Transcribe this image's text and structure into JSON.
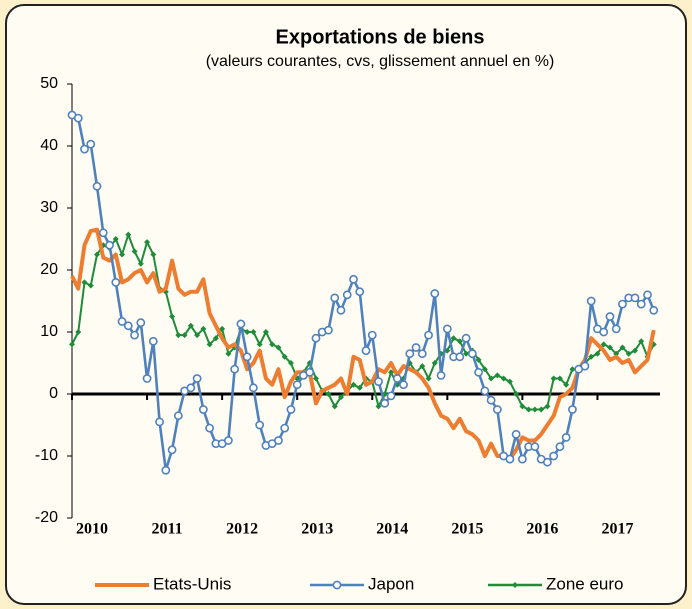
{
  "chart_data": {
    "type": "line",
    "title": "Exportations de biens",
    "subtitle": "(valeurs courantes, cvs, glissement annuel en %)",
    "categories": [
      "2010",
      null,
      null,
      null,
      null,
      null,
      null,
      null,
      null,
      null,
      null,
      null,
      "2011",
      null,
      null,
      null,
      null,
      null,
      null,
      null,
      null,
      null,
      null,
      null,
      "2012",
      null,
      null,
      null,
      null,
      null,
      null,
      null,
      null,
      null,
      null,
      null,
      "2013",
      null,
      null,
      null,
      null,
      null,
      null,
      null,
      null,
      null,
      null,
      null,
      "2014",
      null,
      null,
      null,
      null,
      null,
      null,
      null,
      null,
      null,
      null,
      null,
      "2015",
      null,
      null,
      null,
      null,
      null,
      null,
      null,
      null,
      null,
      null,
      null,
      "2016",
      null,
      null,
      null,
      null,
      null,
      null,
      null,
      null,
      null,
      null,
      null,
      "2017",
      null,
      null,
      null,
      null,
      null,
      null,
      null,
      null,
      null
    ],
    "series": [
      {
        "name": "Etats-Unis",
        "color": "#ed7d31",
        "marker": "none",
        "values": [
          19,
          17,
          24,
          26.3,
          26.5,
          22,
          21.5,
          22.5,
          18,
          18.5,
          19.5,
          20,
          18,
          19.5,
          16.5,
          17,
          21.5,
          17,
          16,
          16.5,
          16.5,
          18.5,
          13,
          11,
          9,
          7.5,
          8,
          7,
          4,
          5,
          7,
          2.5,
          1.5,
          4,
          -0.5,
          2,
          3.5,
          3.5,
          3.5,
          -1.5,
          0.5,
          1,
          1.5,
          2.5,
          0,
          6,
          5.5,
          1.5,
          2,
          4,
          3.5,
          5,
          3,
          4.5,
          4,
          3.5,
          2.5,
          1,
          -1.5,
          -3.5,
          -4,
          -5.5,
          -4,
          -6,
          -6.5,
          -7.5,
          -10,
          -8,
          -10,
          -10,
          -10.5,
          -9,
          -7,
          -7.5,
          -7.5,
          -6.5,
          -5,
          -3.5,
          -0.5,
          0,
          1,
          4,
          5.5,
          9,
          8,
          7,
          5.5,
          6,
          5,
          5.5,
          3.5,
          4.5,
          5.5,
          10.3
        ]
      },
      {
        "name": "Japon",
        "color": "#4f81bd",
        "marker": "circle",
        "values": [
          45,
          44.5,
          39.5,
          40.3,
          33.5,
          26,
          24,
          18,
          11.7,
          11,
          9.5,
          11.5,
          2.5,
          8.5,
          -4.5,
          -12.3,
          -9,
          -3.5,
          0.5,
          1,
          2.5,
          -2.5,
          -5.5,
          -8,
          -8,
          -7.5,
          4,
          11.3,
          6,
          1,
          -5,
          -8.3,
          -8,
          -7.5,
          -5.5,
          -2.5,
          1.5,
          3,
          3.5,
          9,
          10,
          10.3,
          15.5,
          13.5,
          16,
          18.5,
          16.5,
          7,
          9.5,
          2,
          -1.5,
          -0.3,
          2.5,
          1.5,
          6.5,
          7.5,
          6.5,
          9.5,
          16.2,
          3,
          10.5,
          6,
          6,
          9,
          6.5,
          3.5,
          0.5,
          -1,
          -2.5,
          -10,
          -10.5,
          -6.5,
          -10.5,
          -8.5,
          -8.5,
          -10.5,
          -11,
          -10,
          -8.5,
          -7,
          -2.5,
          4,
          4.5,
          15,
          10.5,
          10,
          12.5,
          10.5,
          14.5,
          15.5,
          15.5,
          14.5,
          16,
          13.5
        ]
      },
      {
        "name": "Zone euro",
        "color": "#1e8c3a",
        "marker": "diamond",
        "values": [
          8,
          10,
          18,
          17.5,
          22.5,
          24,
          23.5,
          25,
          22.5,
          25.7,
          23,
          21,
          24.5,
          22.5,
          17,
          16.5,
          12.5,
          9.5,
          9.5,
          11,
          9.5,
          10.5,
          8,
          9,
          10.5,
          6.5,
          7.5,
          10.5,
          10,
          10,
          8,
          10,
          8,
          7.5,
          6,
          5,
          2.5,
          3.5,
          5,
          2.5,
          0.5,
          0,
          -2,
          -0.5,
          0.5,
          1.5,
          1,
          2.5,
          2,
          -2,
          0,
          3.5,
          1.5,
          2.5,
          5,
          3.5,
          4.5,
          2.5,
          5,
          6.5,
          7,
          9,
          8.5,
          6.5,
          7,
          5.5,
          4,
          2.5,
          3,
          2.5,
          2,
          0,
          -2,
          -2.5,
          -2.5,
          -2.5,
          -2,
          2.5,
          2.5,
          1.5,
          4,
          4,
          5,
          6,
          6.5,
          8,
          7.5,
          6.5,
          7.5,
          6.5,
          7,
          8.5,
          6,
          8
        ]
      }
    ],
    "ylim": [
      -20,
      50
    ],
    "yticks": [
      -20,
      -10,
      0,
      10,
      20,
      30,
      40,
      50
    ],
    "grid": false,
    "legend": "bottom"
  }
}
